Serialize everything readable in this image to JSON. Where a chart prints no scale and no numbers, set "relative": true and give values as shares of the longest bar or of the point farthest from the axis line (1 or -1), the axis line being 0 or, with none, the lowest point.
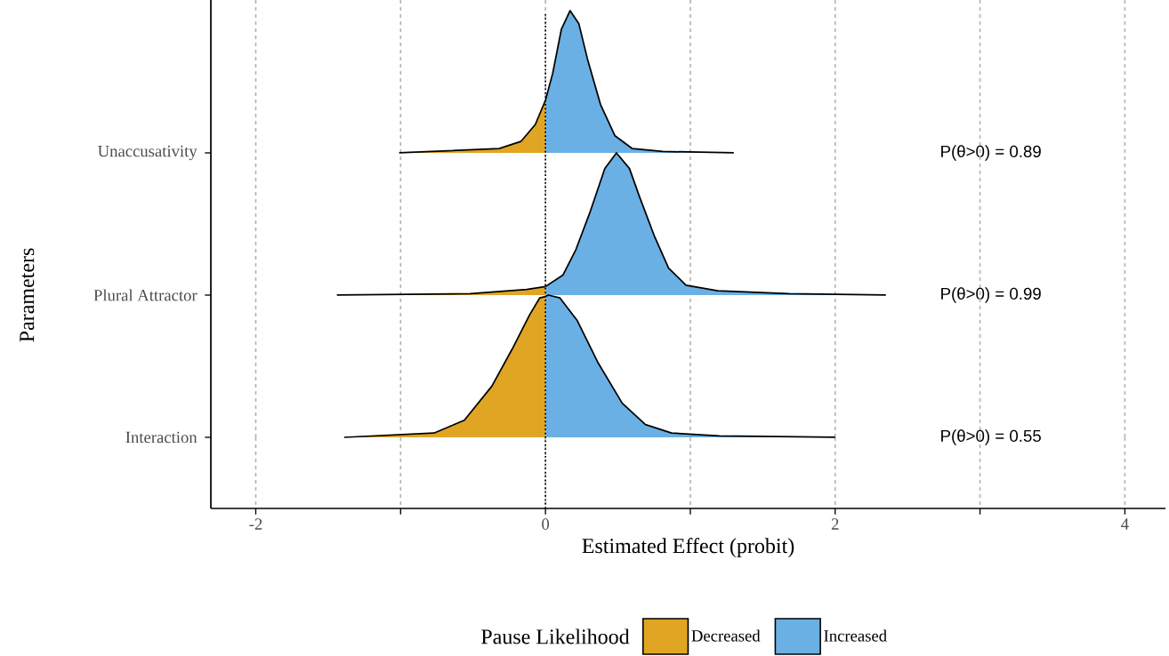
{
  "chart_data": [
    {
      "type": "area",
      "relative": true,
      "ylabel": "Unaccusativity",
      "xticks": [
        -2,
        -1,
        0,
        1,
        2,
        3,
        4
      ],
      "tick_labels": false,
      "grid": "x",
      "annotations": [
        "P(θ>0) = 0.89"
      ],
      "series": [
        {
          "color": "#e1a524",
          "x": [
            -1.01,
            -0.32,
            -0.17,
            -0.07,
            0
          ],
          "values": [
            0,
            0.03,
            0.08,
            0.2,
            0.37
          ]
        },
        {
          "color": "#6ab0e4",
          "x": [
            0,
            0.05,
            0.11,
            0.17,
            0.23,
            0.29,
            0.38,
            0.48,
            0.6,
            0.81,
            1.3
          ],
          "values": [
            0.37,
            0.56,
            0.87,
            1,
            0.91,
            0.66,
            0.34,
            0.12,
            0.03,
            0.01,
            0
          ]
        }
      ]
    },
    {
      "type": "area",
      "relative": true,
      "ylabel": "Plural Attractor",
      "xticks": [
        -2,
        -1,
        0,
        1,
        2,
        3,
        4
      ],
      "tick_labels": false,
      "grid": "x",
      "annotations": [
        "Parameters",
        "P(θ>0) = 0.99"
      ],
      "series": [
        {
          "color": "#e1a524",
          "x": [
            -1.44,
            -0.52,
            -0.13,
            0
          ],
          "values": [
            0,
            0.01,
            0.04,
            0.06
          ]
        },
        {
          "color": "#6ab0e4",
          "x": [
            0,
            0.12,
            0.21,
            0.31,
            0.41,
            0.49,
            0.58,
            0.65,
            0.75,
            0.85,
            0.97,
            1.19,
            1.68,
            2.35
          ],
          "values": [
            0.06,
            0.14,
            0.32,
            0.59,
            0.89,
            1,
            0.89,
            0.69,
            0.42,
            0.19,
            0.07,
            0.03,
            0.01,
            0
          ]
        }
      ]
    },
    {
      "type": "area",
      "relative": true,
      "ylabel": "Interaction",
      "xlabel": "Estimated Effect (probit)",
      "xlim": [
        -2.31,
        4.28
      ],
      "xticks": [
        -2,
        {
          "value": -1,
          "label": null
        },
        0,
        {
          "value": 1,
          "label": null
        },
        2,
        {
          "value": 3,
          "label": null
        },
        4
      ],
      "tick_labels": "x",
      "grid": "x",
      "legend": "bottom",
      "legend_title": "Pause Likelihood",
      "ref_lines": [
        {
          "axis": "x",
          "value": 0,
          "color": "#000000",
          "line_style": "dotted"
        }
      ],
      "annotations": [
        "P(θ>0) = 0.55"
      ],
      "series": [
        {
          "name": "Decreased",
          "color": "#e1a524",
          "x": [
            -1.39,
            -0.77,
            -0.56,
            -0.37,
            -0.23,
            -0.11,
            -0.04,
            0
          ],
          "values": [
            0,
            0.03,
            0.12,
            0.36,
            0.62,
            0.86,
            0.98,
            0.99
          ]
        },
        {
          "name": "Increased",
          "color": "#6ab0e4",
          "x": [
            0,
            0.02,
            0.1,
            0.22,
            0.36,
            0.53,
            0.69,
            0.87,
            1.2,
            2.0
          ],
          "values": [
            0.99,
            1,
            0.98,
            0.82,
            0.53,
            0.24,
            0.09,
            0.03,
            0.01,
            0
          ]
        }
      ]
    }
  ]
}
